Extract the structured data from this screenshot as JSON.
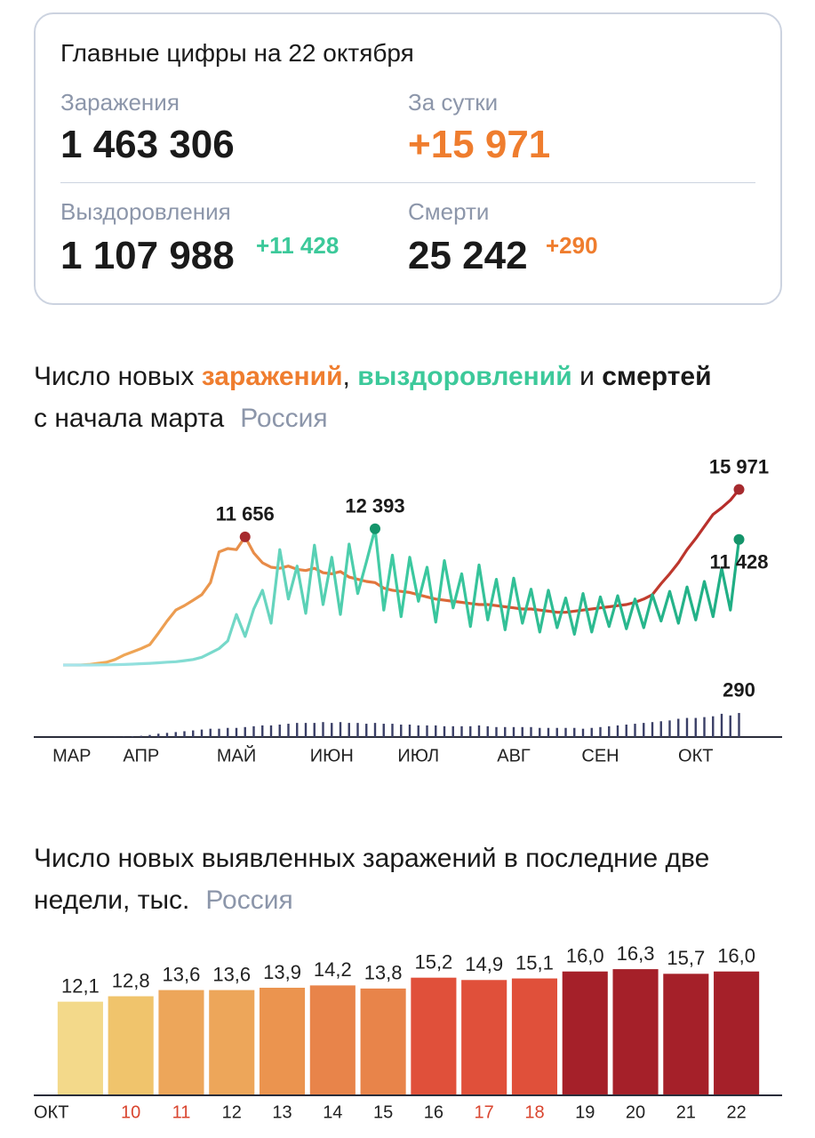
{
  "summary": {
    "title": "Главные цифры на 22 октября",
    "cases": {
      "label": "Заражения",
      "value": "1 463 306"
    },
    "daily": {
      "label": "За сутки",
      "value": "+15 971"
    },
    "recovered": {
      "label": "Выздоровления",
      "value": "1 107 988",
      "delta": "+11 428"
    },
    "deaths": {
      "label": "Смерти",
      "value": "25 242",
      "delta": "+290"
    }
  },
  "chart_data": [
    {
      "type": "line",
      "title_parts": [
        "Число новых",
        "заражений",
        ",",
        "выздоровлений",
        "и",
        "смертей"
      ],
      "subtitle": "с начала марта",
      "region": "Россия",
      "categories": [
        null,
        "МАР",
        null,
        null,
        null,
        null,
        null,
        null,
        null,
        "АПР",
        null,
        null,
        null,
        null,
        null,
        null,
        null,
        null,
        null,
        null,
        "МАЙ",
        null,
        null,
        null,
        null,
        null,
        null,
        null,
        null,
        null,
        null,
        "ИЮН",
        null,
        null,
        null,
        null,
        null,
        null,
        null,
        null,
        null,
        "ИЮЛ",
        null,
        null,
        null,
        null,
        null,
        null,
        null,
        null,
        null,
        null,
        "АВГ",
        null,
        null,
        null,
        null,
        null,
        null,
        null,
        null,
        null,
        "СЕН",
        null,
        null,
        null,
        null,
        null,
        null,
        null,
        null,
        null,
        null,
        "ОКТ",
        null,
        null,
        null,
        null,
        null
      ],
      "ylim": [
        0,
        16000
      ],
      "y2lim": [
        0,
        300
      ],
      "series": [
        {
          "color": "#e0703a",
          "colors": [
            "#f2b25c",
            "#e0703a",
            "#b52a2a"
          ],
          "values": [
            0,
            0,
            0,
            50,
            150,
            250,
            500,
            900,
            1200,
            1500,
            1850,
            2900,
            4000,
            5000,
            5400,
            5900,
            6400,
            7500,
            10300,
            10600,
            10500,
            11656,
            10200,
            9300,
            8900,
            8800,
            9000,
            8700,
            8600,
            8800,
            8400,
            8300,
            8500,
            8000,
            7800,
            7600,
            7500,
            7000,
            6800,
            6700,
            6600,
            6400,
            6200,
            6000,
            5900,
            5800,
            5700,
            5600,
            5500,
            5500,
            5400,
            5300,
            5200,
            5100,
            5100,
            5000,
            4900,
            4800,
            4800,
            4900,
            5000,
            5100,
            5200,
            5300,
            5400,
            5500,
            5700,
            6000,
            6400,
            7400,
            8300,
            9300,
            10500,
            11500,
            12600,
            13700,
            14300,
            15000,
            15971
          ],
          "value_labels": [
            null,
            null,
            null,
            null,
            null,
            null,
            null,
            null,
            null,
            null,
            null,
            null,
            null,
            null,
            null,
            null,
            null,
            null,
            null,
            null,
            null,
            "11 656",
            null,
            null,
            null,
            null,
            null,
            null,
            null,
            null,
            null,
            null,
            null,
            null,
            null,
            null,
            null,
            null,
            null,
            null,
            null,
            null,
            null,
            null,
            null,
            null,
            null,
            null,
            null,
            null,
            null,
            null,
            null,
            null,
            null,
            null,
            null,
            null,
            null,
            null,
            null,
            null,
            null,
            null,
            null,
            null,
            null,
            null,
            null,
            null,
            null,
            null,
            null,
            null,
            null,
            null,
            null,
            null,
            "15 971"
          ],
          "marker_color": "#a62a2e"
        },
        {
          "color": "#27b58a",
          "colors": [
            "#a9e6ee",
            "#3cc9a0",
            "#1fae84"
          ],
          "values": [
            0,
            0,
            0,
            0,
            10,
            20,
            30,
            50,
            80,
            120,
            150,
            200,
            260,
            300,
            400,
            500,
            700,
            1100,
            1500,
            2200,
            4600,
            2600,
            5100,
            6800,
            3800,
            10500,
            6000,
            9000,
            4700,
            10900,
            5500,
            9800,
            4600,
            11000,
            6500,
            9400,
            12393,
            5000,
            10000,
            4400,
            9800,
            5800,
            8900,
            3900,
            9500,
            5200,
            8300,
            3500,
            9100,
            4100,
            7800,
            3200,
            7900,
            3800,
            6900,
            3000,
            6800,
            3400,
            6100,
            2800,
            6500,
            3000,
            6200,
            3500,
            6300,
            3300,
            6000,
            3400,
            6400,
            4000,
            6700,
            3800,
            7100,
            4100,
            7600,
            4400,
            8800,
            5000,
            11428
          ],
          "value_labels": [
            null,
            null,
            null,
            null,
            null,
            null,
            null,
            null,
            null,
            null,
            null,
            null,
            null,
            null,
            null,
            null,
            null,
            null,
            null,
            null,
            null,
            null,
            null,
            null,
            null,
            null,
            null,
            null,
            null,
            null,
            null,
            null,
            null,
            null,
            null,
            null,
            "12 393",
            null,
            null,
            null,
            null,
            null,
            null,
            null,
            null,
            null,
            null,
            null,
            null,
            null,
            null,
            null,
            null,
            null,
            null,
            null,
            null,
            null,
            null,
            null,
            null,
            null,
            null,
            null,
            null,
            null,
            null,
            null,
            null,
            null,
            null,
            null,
            null,
            null,
            null,
            null,
            null,
            null,
            "11 428"
          ],
          "marker_color": "#14946a"
        },
        {
          "type": "bar",
          "axis": "y2",
          "color": "#3a3f66",
          "values": [
            0,
            0,
            0,
            0,
            0,
            1,
            2,
            4,
            8,
            15,
            25,
            40,
            50,
            60,
            70,
            80,
            90,
            100,
            100,
            110,
            110,
            120,
            130,
            140,
            140,
            150,
            160,
            170,
            170,
            170,
            180,
            170,
            180,
            170,
            170,
            160,
            170,
            160,
            160,
            150,
            150,
            140,
            140,
            140,
            130,
            130,
            130,
            130,
            140,
            130,
            120,
            120,
            120,
            120,
            120,
            110,
            110,
            110,
            110,
            110,
            100,
            110,
            120,
            130,
            140,
            150,
            160,
            170,
            180,
            190,
            200,
            220,
            230,
            230,
            240,
            250,
            280,
            260,
            290
          ],
          "value_labels": [
            null,
            null,
            null,
            null,
            null,
            null,
            null,
            null,
            null,
            null,
            null,
            null,
            null,
            null,
            null,
            null,
            null,
            null,
            null,
            null,
            null,
            null,
            null,
            null,
            null,
            null,
            null,
            null,
            null,
            null,
            null,
            null,
            null,
            null,
            null,
            null,
            null,
            null,
            null,
            null,
            null,
            null,
            null,
            null,
            null,
            null,
            null,
            null,
            null,
            null,
            null,
            null,
            null,
            null,
            null,
            null,
            null,
            null,
            null,
            null,
            null,
            null,
            null,
            null,
            null,
            null,
            null,
            null,
            null,
            null,
            null,
            null,
            null,
            null,
            null,
            null,
            null,
            null,
            "290"
          ]
        }
      ]
    },
    {
      "type": "bar",
      "title": "Число новых выявленных заражений в последние две недели, тыс.",
      "region": "Россия",
      "categories": [
        "ОКТ",
        "10",
        "11",
        "12",
        "13",
        "14",
        "15",
        "16",
        "17",
        "18",
        "19",
        "20",
        "21",
        "22"
      ],
      "category_colors": [
        "#222222",
        "#d9452f",
        "#d9452f",
        "#222222",
        "#222222",
        "#222222",
        "#222222",
        "#222222",
        "#d9452f",
        "#d9452f",
        "#222222",
        "#222222",
        "#222222",
        "#222222"
      ],
      "values": [
        12.1,
        12.8,
        13.6,
        13.6,
        13.9,
        14.2,
        13.8,
        15.2,
        14.9,
        15.1,
        16.0,
        16.3,
        15.7,
        16.0
      ],
      "value_labels": [
        "12,1",
        "12,8",
        "13,6",
        "13,6",
        "13,9",
        "14,2",
        "13,8",
        "15,2",
        "14,9",
        "15,1",
        "16,0",
        "16,3",
        "15,7",
        "16,0"
      ],
      "colors": [
        "#f3d98a",
        "#f0c46c",
        "#eda65a",
        "#eda65a",
        "#eb944f",
        "#e8844a",
        "#e8844a",
        "#e0503a",
        "#e0503a",
        "#e0503a",
        "#a52029",
        "#a52029",
        "#a52029",
        "#a52029"
      ],
      "ylim": [
        0,
        17
      ]
    }
  ]
}
